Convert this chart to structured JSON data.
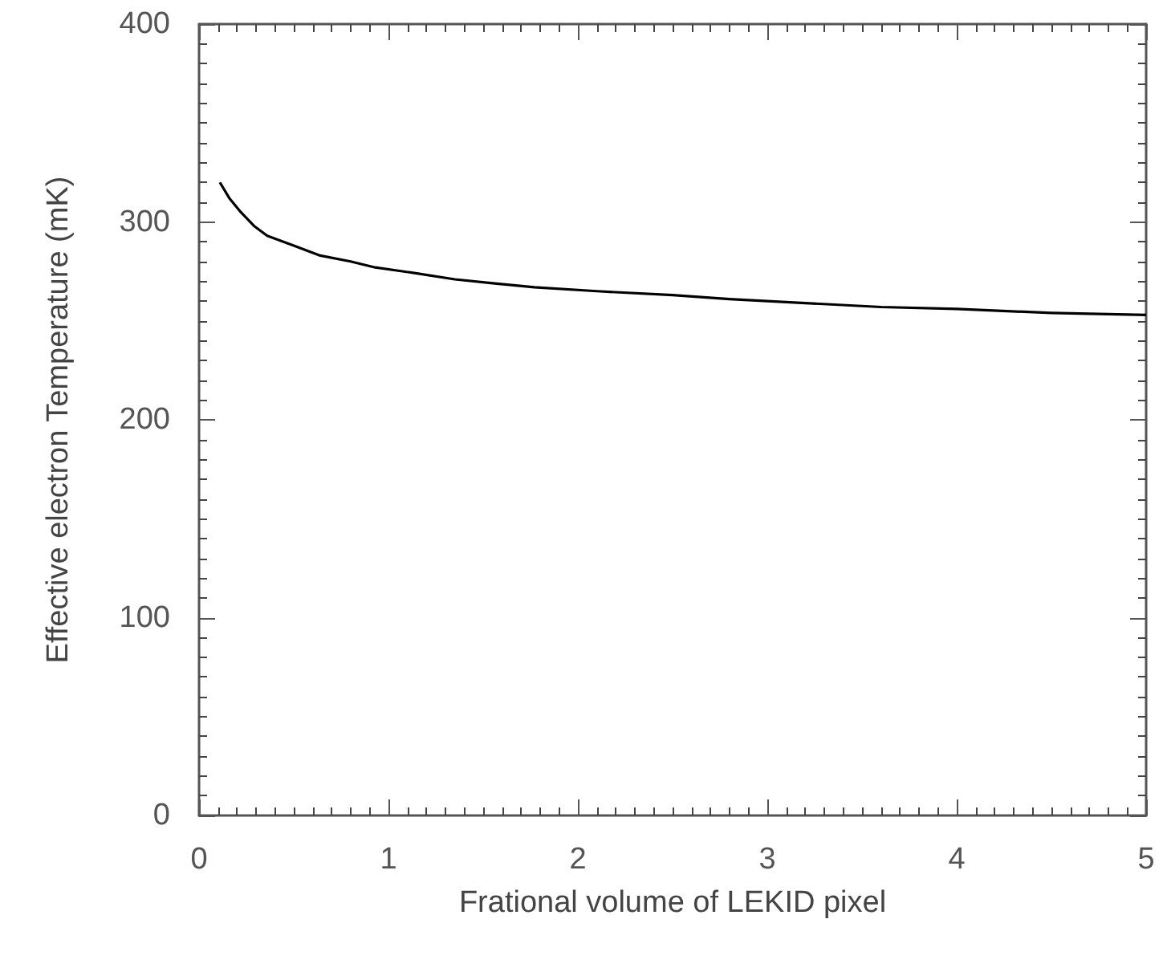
{
  "chart_data": {
    "type": "line",
    "xlabel": "Frational volume of LEKID pixel",
    "ylabel": "Effective electron Temperature (mK)",
    "x": [
      0.11,
      0.16,
      0.22,
      0.29,
      0.36,
      0.5,
      0.64,
      0.8,
      0.93,
      1.15,
      1.35,
      1.55,
      1.77,
      2.1,
      2.5,
      2.8,
      3.2,
      3.6,
      4.0,
      4.5,
      5.0
    ],
    "series": [
      {
        "color": "#000000",
        "values": [
          320,
          312,
          305,
          298,
          293,
          288,
          283,
          280,
          277,
          274,
          271,
          269,
          267,
          265,
          263,
          261,
          259,
          257,
          256,
          254,
          253
        ]
      }
    ],
    "xlim": [
      0,
      5
    ],
    "xticks": [
      0,
      1,
      2,
      3,
      4,
      5
    ],
    "ylim": [
      0,
      400
    ],
    "yticks": [
      0,
      100,
      200,
      300,
      400
    ],
    "marker": "none",
    "line_style": "solid"
  }
}
